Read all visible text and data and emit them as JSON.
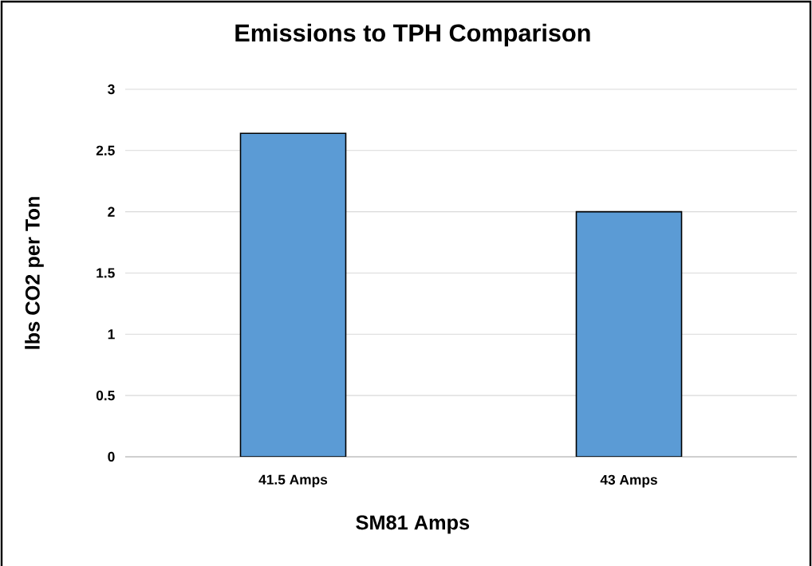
{
  "chart_data": {
    "type": "bar",
    "title": "Emissions to TPH Comparison",
    "xlabel": "SM81 Amps",
    "ylabel": "lbs CO2 per Ton",
    "categories": [
      "41.5 Amps",
      "43 Amps"
    ],
    "values": [
      2.64,
      2.0
    ],
    "color": "#5b9bd5",
    "ylim": [
      0,
      3
    ],
    "yticks": [
      0,
      0.5,
      1,
      1.5,
      2,
      2.5,
      3
    ],
    "grid": "y"
  }
}
